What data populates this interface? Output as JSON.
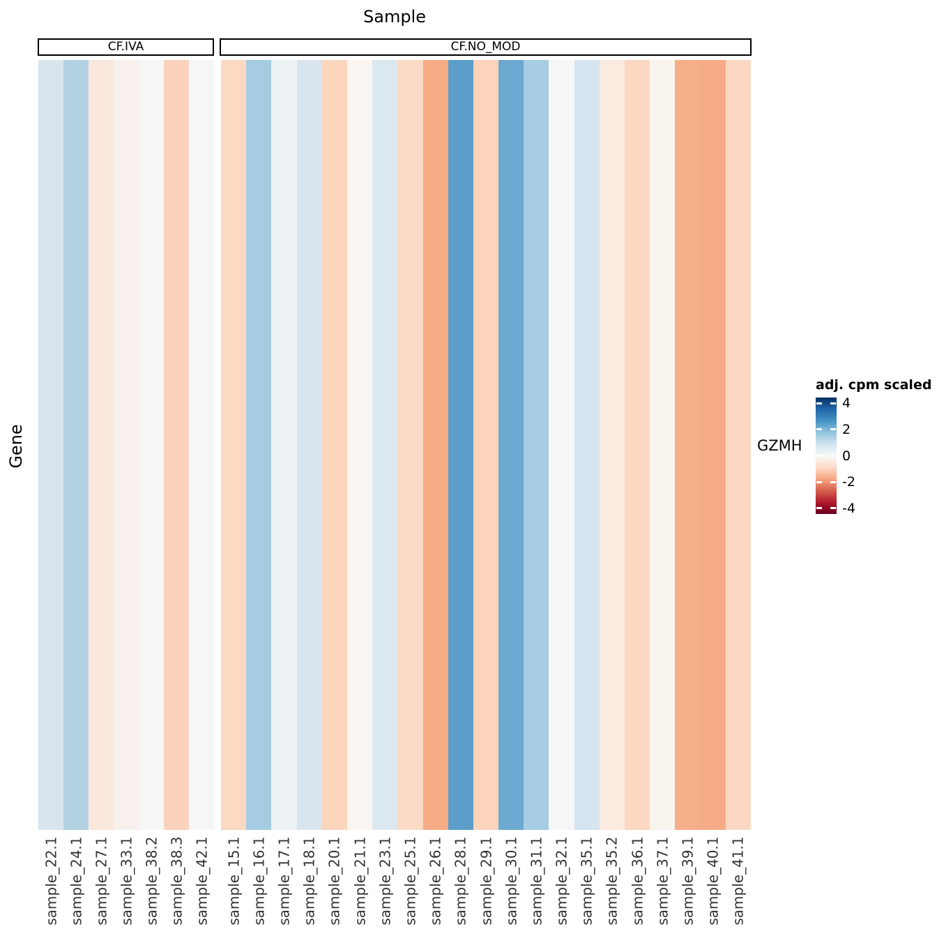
{
  "title": "Sample",
  "y_axis_title": "Gene",
  "row_label": "GZMH",
  "legend": {
    "title": "adj. cpm scaled",
    "ticks": [
      "4",
      "2",
      "0",
      "-2",
      "-4"
    ],
    "tick_values": [
      4,
      2,
      0,
      -2,
      -4
    ],
    "scale_max": 4.45,
    "scale_min": -4.45,
    "gradient_stops": [
      "#053061",
      "#2166ac",
      "#4393c3",
      "#92c5de",
      "#d1e5f0",
      "#f7f7f7",
      "#fddbc7",
      "#f4a582",
      "#d6604d",
      "#b2182b",
      "#67001f"
    ]
  },
  "chart_data": {
    "type": "heatmap",
    "title": "Sample",
    "xlabel": "Sample",
    "ylabel": "Gene",
    "rows": [
      "GZMH"
    ],
    "legend_title": "adj. cpm scaled",
    "color_scale": {
      "name": "RdBu",
      "domain": [
        -4.45,
        4.45
      ],
      "tick_labels": [
        4,
        2,
        0,
        -2,
        -4
      ]
    },
    "groups": [
      {
        "name": "CF.IVA",
        "samples": [
          "sample_22.1",
          "sample_24.1",
          "sample_27.1",
          "sample_33.1",
          "sample_38.2",
          "sample_38.3",
          "sample_42.1"
        ],
        "values": [
          0.75,
          1.3,
          -0.48,
          -0.22,
          0.02,
          -1.05,
          0.03
        ],
        "colors": [
          "#d8e5ee",
          "#b3d3e5",
          "#fbe8dd",
          "#f8f0ec",
          "#f7f6f6",
          "#fbd2bc",
          "#f6f6f6"
        ]
      },
      {
        "name": "CF.NO_MOD",
        "samples": [
          "sample_15.1",
          "sample_16.1",
          "sample_17.1",
          "sample_18.1",
          "sample_20.1",
          "sample_21.1",
          "sample_23.1",
          "sample_25.1",
          "sample_26.1",
          "sample_28.1",
          "sample_29.1",
          "sample_30.1",
          "sample_31.1",
          "sample_32.1",
          "sample_35.1",
          "sample_35.2",
          "sample_36.1",
          "sample_37.1",
          "sample_39.1",
          "sample_40.1",
          "sample_41.1"
        ],
        "values": [
          -0.93,
          1.5,
          0.25,
          0.75,
          -1.0,
          -0.1,
          0.65,
          -0.9,
          -1.75,
          2.4,
          -1.0,
          2.3,
          1.5,
          0.0,
          0.8,
          -0.42,
          -0.95,
          -0.15,
          -1.7,
          -1.75,
          -0.93
        ],
        "colors": [
          "#fcd9c3",
          "#a6cce1",
          "#edf2f5",
          "#d9e4ee",
          "#fcd5bd",
          "#faf5f1",
          "#dce8f0",
          "#fcdbc6",
          "#f5ab83",
          "#5b9ec9",
          "#fcd3bb",
          "#6ca8cf",
          "#a7cde2",
          "#f7f6f6",
          "#d6e4ef",
          "#faeadf",
          "#fcd7c1",
          "#faf4ee",
          "#f6ae89",
          "#f5ab85",
          "#fcd8c4"
        ]
      }
    ]
  }
}
